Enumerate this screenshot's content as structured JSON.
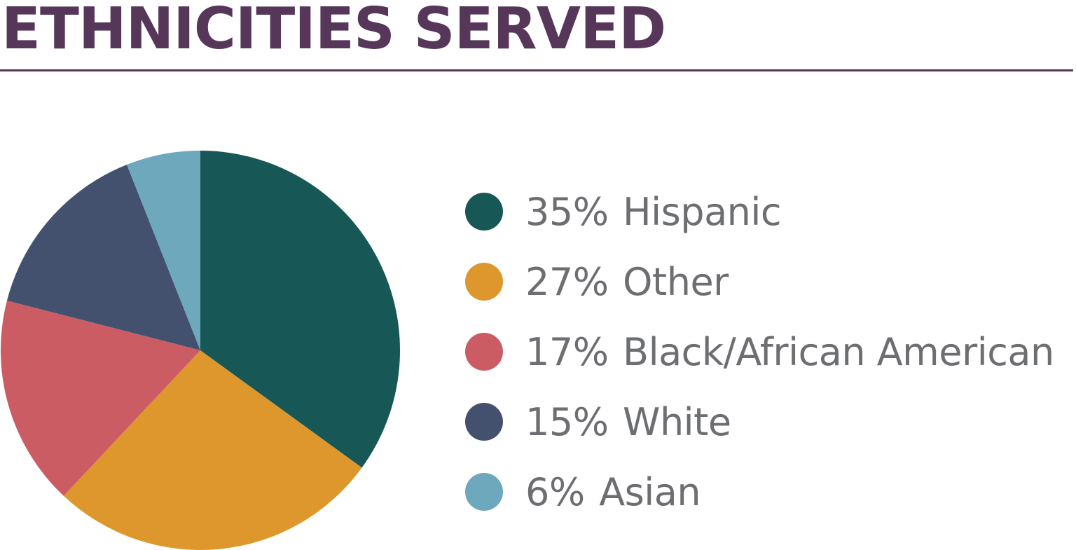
{
  "title": "ETHNICITIES SERVED",
  "colors": {
    "title": "#563659",
    "label_text": "#6d6e71"
  },
  "chart_data": {
    "type": "pie",
    "unit": "%",
    "start": "12 o'clock",
    "direction": "clockwise",
    "slices": [
      {
        "label": "Hispanic",
        "value": 35,
        "percent_label": "35%",
        "color": "#175756"
      },
      {
        "label": "Other",
        "value": 27,
        "percent_label": "27%",
        "color": "#dd972c"
      },
      {
        "label": "Black/African American",
        "value": 17,
        "percent_label": "17%",
        "color": "#cb5c63"
      },
      {
        "label": "White",
        "value": 15,
        "percent_label": "15%",
        "color": "#44516e"
      },
      {
        "label": "Asian",
        "value": 6,
        "percent_label": "6%",
        "color": "#6ea8bd"
      }
    ],
    "legend_position": "right"
  }
}
